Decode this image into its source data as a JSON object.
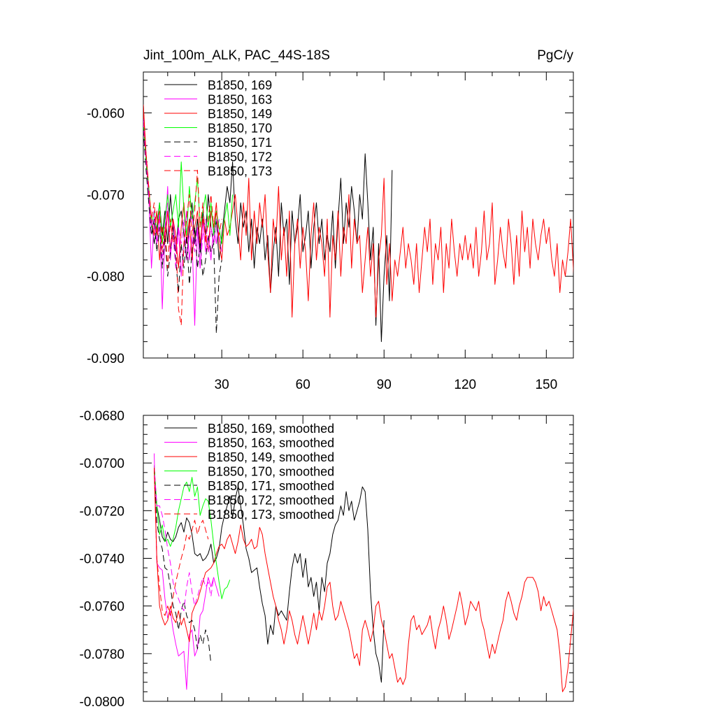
{
  "chart_data": [
    {
      "type": "line",
      "title": "Jint_100m_ALK, PAC_44S-18S",
      "units": "PgC/y",
      "xlabel": "",
      "ylabel": "",
      "xlim": [
        1,
        160
      ],
      "ylim": [
        -0.09,
        -0.055
      ],
      "x_ticks": [
        30,
        60,
        90,
        120,
        150
      ],
      "y_ticks": [
        -0.06,
        -0.07,
        -0.08,
        -0.09
      ],
      "y_tick_labels": [
        "-0.060",
        "-0.070",
        "-0.080",
        "-0.090"
      ],
      "grid": false,
      "legend_position": "top-left",
      "series": [
        {
          "name": "B1850, 169",
          "color": "#000000",
          "dash": "solid",
          "x_start": 1,
          "values": [
            -0.059,
            -0.066,
            -0.07,
            -0.073,
            -0.076,
            -0.074,
            -0.071,
            -0.075,
            -0.072,
            -0.076,
            -0.07,
            -0.074,
            -0.077,
            -0.073,
            -0.072,
            -0.075,
            -0.078,
            -0.074,
            -0.071,
            -0.076,
            -0.073,
            -0.077,
            -0.072,
            -0.075,
            -0.07,
            -0.074,
            -0.076,
            -0.073,
            -0.078,
            -0.075,
            -0.072,
            -0.069,
            -0.071,
            -0.066,
            -0.073,
            -0.076,
            -0.071,
            -0.074,
            -0.072,
            -0.077,
            -0.073,
            -0.079,
            -0.074,
            -0.076,
            -0.073,
            -0.078,
            -0.075,
            -0.082,
            -0.077,
            -0.074,
            -0.08,
            -0.071,
            -0.075,
            -0.073,
            -0.081,
            -0.072,
            -0.076,
            -0.074,
            -0.07,
            -0.077,
            -0.075,
            -0.072,
            -0.079,
            -0.074,
            -0.071,
            -0.076,
            -0.073,
            -0.078,
            -0.075,
            -0.077,
            -0.072,
            -0.079,
            -0.073,
            -0.068,
            -0.076,
            -0.071,
            -0.074,
            -0.069,
            -0.072,
            -0.076,
            -0.07,
            -0.073,
            -0.065,
            -0.071,
            -0.078,
            -0.074,
            -0.086,
            -0.076,
            -0.088,
            -0.08,
            -0.075,
            -0.083,
            -0.067
          ]
        },
        {
          "name": "B1850, 163",
          "color": "#ff00ff",
          "dash": "solid",
          "x_start": 1,
          "values": [
            -0.06,
            -0.065,
            -0.07,
            -0.079,
            -0.073,
            -0.076,
            -0.072,
            -0.084,
            -0.075,
            -0.069,
            -0.078,
            -0.073,
            -0.077,
            -0.074,
            -0.08,
            -0.076,
            -0.072,
            -0.078,
            -0.075,
            -0.086,
            -0.074,
            -0.079,
            -0.073,
            -0.077,
            -0.075,
            -0.078,
            -0.074,
            -0.076,
            -0.073
          ]
        },
        {
          "name": "B1850, 149",
          "color": "#ff0000",
          "dash": "solid",
          "x_start": 1,
          "values": [
            -0.059,
            -0.065,
            -0.069,
            -0.073,
            -0.075,
            -0.072,
            -0.078,
            -0.074,
            -0.076,
            -0.072,
            -0.077,
            -0.073,
            -0.075,
            -0.079,
            -0.074,
            -0.071,
            -0.076,
            -0.073,
            -0.078,
            -0.074,
            -0.072,
            -0.076,
            -0.073,
            -0.075,
            -0.077,
            -0.072,
            -0.074,
            -0.071,
            -0.076,
            -0.078,
            -0.073,
            -0.075,
            -0.074,
            -0.072,
            -0.07,
            -0.074,
            -0.078,
            -0.071,
            -0.075,
            -0.068,
            -0.078,
            -0.072,
            -0.076,
            -0.071,
            -0.074,
            -0.07,
            -0.077,
            -0.082,
            -0.073,
            -0.076,
            -0.069,
            -0.078,
            -0.074,
            -0.08,
            -0.072,
            -0.085,
            -0.076,
            -0.073,
            -0.079,
            -0.074,
            -0.077,
            -0.083,
            -0.075,
            -0.071,
            -0.078,
            -0.074,
            -0.076,
            -0.08,
            -0.073,
            -0.085,
            -0.075,
            -0.078,
            -0.072,
            -0.08,
            -0.074,
            -0.076,
            -0.07,
            -0.079,
            -0.073,
            -0.076,
            -0.075,
            -0.082,
            -0.078,
            -0.074,
            -0.08,
            -0.076,
            -0.085,
            -0.078,
            -0.075,
            -0.068,
            -0.081,
            -0.076,
            -0.083,
            -0.078,
            -0.08,
            -0.077,
            -0.074,
            -0.079,
            -0.076,
            -0.078,
            -0.081,
            -0.076,
            -0.082,
            -0.078,
            -0.074,
            -0.077,
            -0.073,
            -0.081,
            -0.076,
            -0.078,
            -0.074,
            -0.082,
            -0.076,
            -0.079,
            -0.073,
            -0.077,
            -0.08,
            -0.076,
            -0.078,
            -0.075,
            -0.078,
            -0.076,
            -0.079,
            -0.074,
            -0.08,
            -0.077,
            -0.072,
            -0.078,
            -0.076,
            -0.071,
            -0.081,
            -0.078,
            -0.074,
            -0.077,
            -0.079,
            -0.073,
            -0.076,
            -0.081,
            -0.075,
            -0.08,
            -0.072,
            -0.077,
            -0.074,
            -0.079,
            -0.073,
            -0.076,
            -0.078,
            -0.075,
            -0.073,
            -0.076,
            -0.074,
            -0.078,
            -0.08,
            -0.076,
            -0.082,
            -0.078,
            -0.08,
            -0.077,
            -0.073,
            -0.079,
            -0.085,
            -0.078,
            -0.072,
            -0.069,
            -0.073,
            -0.074
          ]
        },
        {
          "name": "B1850, 170",
          "color": "#00ff00",
          "dash": "solid",
          "x_start": 1,
          "values": [
            -0.061,
            -0.066,
            -0.069,
            -0.074,
            -0.072,
            -0.075,
            -0.071,
            -0.076,
            -0.073,
            -0.07,
            -0.074,
            -0.072,
            -0.07,
            -0.074,
            -0.066,
            -0.072,
            -0.075,
            -0.069,
            -0.073,
            -0.071,
            -0.068,
            -0.074,
            -0.072,
            -0.07,
            -0.074,
            -0.071,
            -0.075,
            -0.072,
            -0.074,
            -0.076,
            -0.073,
            -0.071,
            -0.075,
            -0.07
          ]
        },
        {
          "name": "B1850, 171",
          "color": "#000000",
          "dash": "dash",
          "x_start": 1,
          "values": [
            -0.062,
            -0.067,
            -0.071,
            -0.075,
            -0.073,
            -0.077,
            -0.074,
            -0.079,
            -0.075,
            -0.08,
            -0.077,
            -0.074,
            -0.078,
            -0.082,
            -0.076,
            -0.079,
            -0.075,
            -0.081,
            -0.077,
            -0.074,
            -0.079,
            -0.076,
            -0.08,
            -0.078,
            -0.075,
            -0.077,
            -0.076,
            -0.087,
            -0.08,
            -0.078
          ]
        },
        {
          "name": "B1850, 172",
          "color": "#ff00ff",
          "dash": "dash",
          "x_start": 1,
          "values": [
            -0.061,
            -0.066,
            -0.07,
            -0.074,
            -0.072,
            -0.076,
            -0.073,
            -0.078,
            -0.074,
            -0.071,
            -0.077,
            -0.075,
            -0.079,
            -0.074,
            -0.076,
            -0.073,
            -0.078,
            -0.075,
            -0.072,
            -0.077,
            -0.074,
            -0.079,
            -0.075,
            -0.073,
            -0.077,
            -0.074,
            -0.076,
            -0.073,
            -0.075,
            -0.077
          ]
        },
        {
          "name": "B1850, 173",
          "color": "#ff0000",
          "dash": "dash",
          "x_start": 1,
          "values": [
            -0.06,
            -0.065,
            -0.069,
            -0.073,
            -0.071,
            -0.075,
            -0.072,
            -0.077,
            -0.074,
            -0.079,
            -0.073,
            -0.076,
            -0.075,
            -0.084,
            -0.086,
            -0.076,
            -0.073,
            -0.07,
            -0.075,
            -0.072,
            -0.067,
            -0.074,
            -0.071,
            -0.076,
            -0.073,
            -0.07,
            -0.074,
            -0.072,
            -0.075,
            -0.073
          ]
        }
      ]
    },
    {
      "type": "line",
      "title": "",
      "xlabel": "",
      "ylabel": "",
      "xlim": [
        1,
        160
      ],
      "ylim": [
        -0.08,
        -0.068
      ],
      "x_ticks": [
        30,
        60,
        90,
        120,
        150
      ],
      "y_ticks": [
        -0.068,
        -0.07,
        -0.072,
        -0.074,
        -0.076,
        -0.078,
        -0.08
      ],
      "y_tick_labels": [
        "-0.0680",
        "-0.0700",
        "-0.0720",
        "-0.0740",
        "-0.0760",
        "-0.0780",
        "-0.0800"
      ],
      "grid": false,
      "legend_position": "top-left",
      "series": [
        {
          "name": "B1850, 169, smoothed",
          "color": "#000000",
          "dash": "solid",
          "x_start": 5,
          "values": [
            -0.0702,
            -0.0718,
            -0.0724,
            -0.0731,
            -0.0733,
            -0.0729,
            -0.0732,
            -0.0733,
            -0.0731,
            -0.0727,
            -0.0725,
            -0.0729,
            -0.0723,
            -0.0725,
            -0.073,
            -0.0738,
            -0.0739,
            -0.0738,
            -0.0741,
            -0.074,
            -0.0738,
            -0.0734,
            -0.0742,
            -0.074,
            -0.0736,
            -0.0727,
            -0.0722,
            -0.0718,
            -0.0714,
            -0.0723,
            -0.0715,
            -0.071,
            -0.0718,
            -0.0726,
            -0.0736,
            -0.074,
            -0.0746,
            -0.0745,
            -0.0744,
            -0.0752,
            -0.0759,
            -0.0764,
            -0.0776,
            -0.0768,
            -0.0772,
            -0.076,
            -0.0764,
            -0.0762,
            -0.0764,
            -0.0766,
            -0.0754,
            -0.0744,
            -0.0738,
            -0.0742,
            -0.0738,
            -0.0748,
            -0.074,
            -0.0752,
            -0.0748,
            -0.0756,
            -0.075,
            -0.0762,
            -0.0748,
            -0.0754,
            -0.0742,
            -0.0738,
            -0.073,
            -0.0726,
            -0.0724,
            -0.0718,
            -0.0722,
            -0.0712,
            -0.072,
            -0.0716,
            -0.0724,
            -0.072,
            -0.0716,
            -0.071,
            -0.0712,
            -0.0728,
            -0.0754,
            -0.077,
            -0.078,
            -0.0784,
            -0.0792,
            -0.0766
          ]
        },
        {
          "name": "B1850, 163, smoothed",
          "color": "#ff00ff",
          "dash": "solid",
          "x_start": 5,
          "values": [
            -0.0696,
            -0.0742,
            -0.0744,
            -0.0745,
            -0.0757,
            -0.0765,
            -0.0762,
            -0.077,
            -0.0776,
            -0.0781,
            -0.078,
            -0.0779,
            -0.0795,
            -0.0772,
            -0.077,
            -0.0781,
            -0.0778,
            -0.0764,
            -0.0762,
            -0.0755,
            -0.0748,
            -0.0752,
            -0.0748,
            -0.0752,
            -0.0756
          ]
        },
        {
          "name": "B1850, 149, smoothed",
          "color": "#ff0000",
          "dash": "solid",
          "x_start": 5,
          "values": [
            -0.0703,
            -0.074,
            -0.076,
            -0.0765,
            -0.0768,
            -0.0766,
            -0.076,
            -0.0765,
            -0.0767,
            -0.0762,
            -0.0768,
            -0.0765,
            -0.077,
            -0.0775,
            -0.0763,
            -0.076,
            -0.0758,
            -0.0754,
            -0.075,
            -0.0746,
            -0.0745,
            -0.0744,
            -0.0742,
            -0.0738,
            -0.0735,
            -0.0734,
            -0.0736,
            -0.0732,
            -0.073,
            -0.0734,
            -0.0738,
            -0.0733,
            -0.0726,
            -0.0732,
            -0.0735,
            -0.0734,
            -0.0732,
            -0.0736,
            -0.0735,
            -0.0727,
            -0.073,
            -0.0738,
            -0.0744,
            -0.075,
            -0.0756,
            -0.076,
            -0.0766,
            -0.077,
            -0.0776,
            -0.077,
            -0.0762,
            -0.0766,
            -0.0772,
            -0.0776,
            -0.077,
            -0.0764,
            -0.077,
            -0.0776,
            -0.077,
            -0.0763,
            -0.077,
            -0.0762,
            -0.0766,
            -0.076,
            -0.0752,
            -0.075,
            -0.076,
            -0.0766,
            -0.0764,
            -0.0758,
            -0.0762,
            -0.0766,
            -0.077,
            -0.0776,
            -0.0782,
            -0.078,
            -0.0785,
            -0.077,
            -0.0766,
            -0.077,
            -0.0775,
            -0.077,
            -0.076,
            -0.0758,
            -0.0766,
            -0.077,
            -0.0776,
            -0.0782,
            -0.078,
            -0.0786,
            -0.0792,
            -0.079,
            -0.0793,
            -0.079,
            -0.0776,
            -0.0766,
            -0.0764,
            -0.077,
            -0.0768,
            -0.0772,
            -0.077,
            -0.0768,
            -0.0764,
            -0.0772,
            -0.0778,
            -0.077,
            -0.0766,
            -0.076,
            -0.0766,
            -0.0774,
            -0.077,
            -0.0765,
            -0.076,
            -0.0754,
            -0.076,
            -0.0768,
            -0.0764,
            -0.0758,
            -0.076,
            -0.0762,
            -0.0758,
            -0.0766,
            -0.077,
            -0.0776,
            -0.0782,
            -0.0776,
            -0.078,
            -0.0775,
            -0.077,
            -0.0766,
            -0.0758,
            -0.0754,
            -0.0758,
            -0.0763,
            -0.0766,
            -0.076,
            -0.0756,
            -0.075,
            -0.0748,
            -0.0748,
            -0.0748,
            -0.075,
            -0.0754,
            -0.0762,
            -0.0756,
            -0.076,
            -0.0758,
            -0.0762,
            -0.0766,
            -0.077,
            -0.078,
            -0.0796,
            -0.0794,
            -0.0786,
            -0.0774,
            -0.0762,
            -0.0754
          ]
        },
        {
          "name": "B1850, 170, smoothed",
          "color": "#00ff00",
          "dash": "solid",
          "x_start": 5,
          "values": [
            -0.0701,
            -0.0718,
            -0.073,
            -0.0726,
            -0.0733,
            -0.0732,
            -0.0735,
            -0.0732,
            -0.0727,
            -0.072,
            -0.0715,
            -0.071,
            -0.0708,
            -0.0712,
            -0.0706,
            -0.0714,
            -0.071,
            -0.0722,
            -0.0718,
            -0.0715,
            -0.0716,
            -0.0724,
            -0.0734,
            -0.0742,
            -0.075,
            -0.0757,
            -0.0753,
            -0.0752,
            -0.0749
          ]
        },
        {
          "name": "B1850, 171, smoothed",
          "color": "#000000",
          "dash": "dash",
          "x_start": 5,
          "values": [
            -0.0702,
            -0.0725,
            -0.0732,
            -0.0736,
            -0.0744,
            -0.0745,
            -0.0752,
            -0.076,
            -0.0763,
            -0.077,
            -0.0762,
            -0.0758,
            -0.0764,
            -0.0767,
            -0.0766,
            -0.077,
            -0.0778,
            -0.0772,
            -0.0776,
            -0.077,
            -0.0774,
            -0.0784
          ]
        },
        {
          "name": "B1850, 172, smoothed",
          "color": "#ff00ff",
          "dash": "dash",
          "x_start": 5,
          "values": [
            -0.0701,
            -0.0718,
            -0.0718,
            -0.0722,
            -0.0728,
            -0.0736,
            -0.0742,
            -0.075,
            -0.0754,
            -0.0757,
            -0.076,
            -0.0762,
            -0.0752,
            -0.0746,
            -0.0754,
            -0.076,
            -0.0756,
            -0.0752,
            -0.0748,
            -0.0752,
            -0.075,
            -0.0756,
            -0.0748
          ]
        },
        {
          "name": "B1850, 173, smoothed",
          "color": "#ff0000",
          "dash": "dash",
          "x_start": 5,
          "values": [
            -0.0702,
            -0.074,
            -0.0752,
            -0.0762,
            -0.0764,
            -0.076,
            -0.0764,
            -0.0756,
            -0.075,
            -0.0745,
            -0.074,
            -0.0736,
            -0.073,
            -0.0732,
            -0.0728,
            -0.0724,
            -0.073,
            -0.0726,
            -0.0724,
            -0.0728,
            -0.0732
          ]
        }
      ]
    }
  ]
}
